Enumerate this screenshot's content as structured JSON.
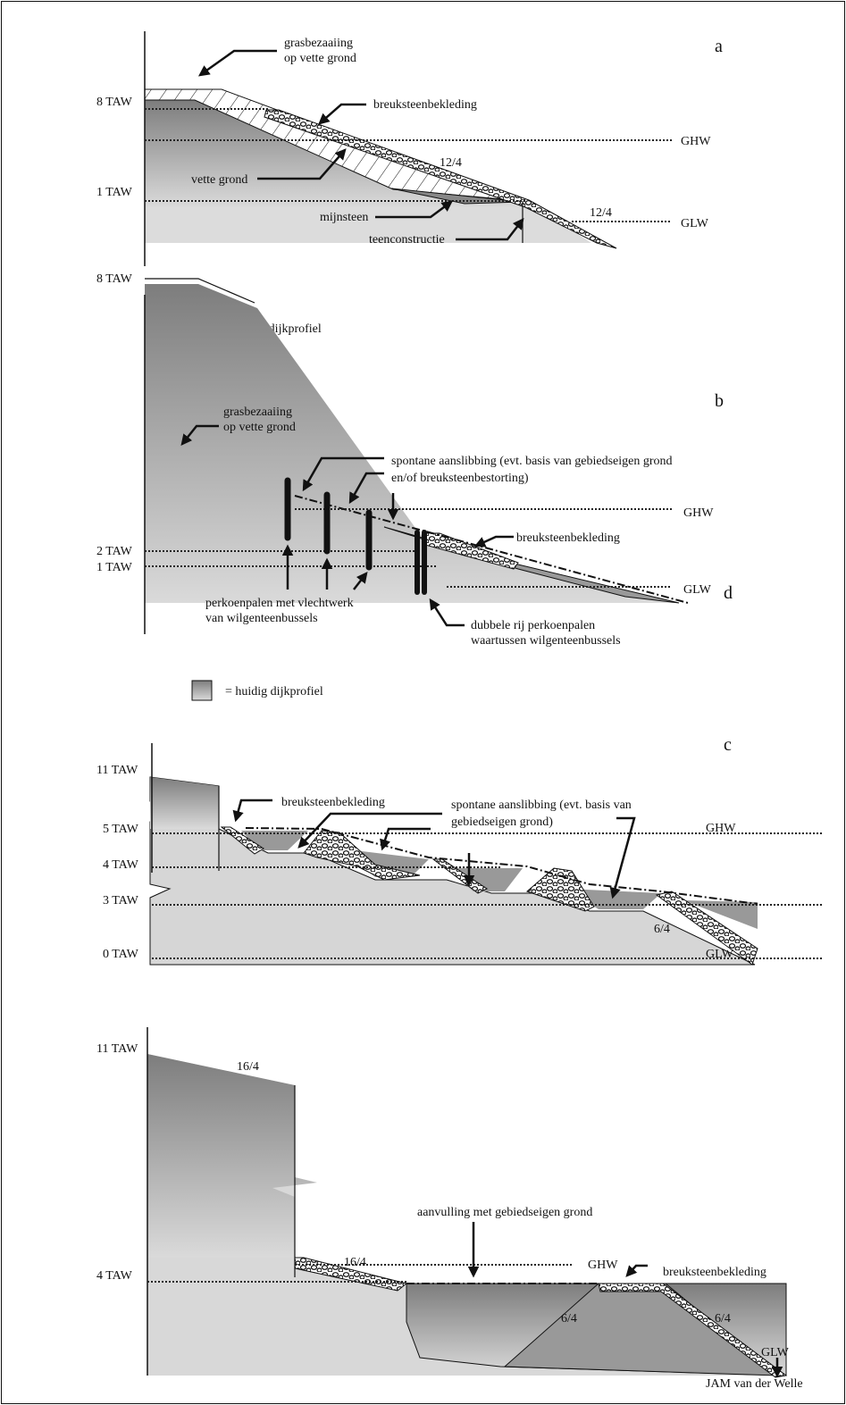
{
  "panel_a": {
    "label": "a",
    "levels": {
      "taw_8": "8 TAW",
      "taw_1": "1 TAW",
      "ghw": "GHW",
      "glw": "GLW"
    },
    "annotations": {
      "grass": [
        "grasbezaaiing",
        "op vette grond"
      ],
      "rock": "breuksteenbekleding",
      "slope_upper": "12/4",
      "fat_soil": "vette grond",
      "mine_stone": "mijnsteen",
      "toe": "teenconstructie",
      "slope_lower": "12/4"
    },
    "legend": "= huidig dijkprofiel"
  },
  "panel_b": {
    "label": "b",
    "levels": {
      "taw_8": "8 TAW",
      "taw_2": "2 TAW",
      "taw_1": "1 TAW",
      "ghw": "GHW",
      "glw": "GLW"
    },
    "annotations": {
      "grass": [
        "grasbezaaiing",
        "op vette grond"
      ],
      "silt": [
        "spontane aanslibbing (evt. basis van gebiedseigen grond",
        "en/of breuksteenbestorting)"
      ],
      "rock": "breuksteenbekleding",
      "stakes": [
        "perkoenpalen met vlechtwerk",
        "van wilgenteenbussels"
      ],
      "double_stakes": [
        "dubbele rij perkoenpalen",
        "waartussen wilgenteenbussels"
      ]
    },
    "legend": "= huidig dijkprofiel"
  },
  "panel_c": {
    "label": "c",
    "levels": {
      "taw_11": "11 TAW",
      "taw_5": "5 TAW",
      "taw_4": "4 TAW",
      "taw_3": "3 TAW",
      "taw_0": "0 TAW",
      "ghw": "GHW",
      "glw": "GLW"
    },
    "annotations": {
      "rock": "breuksteenbekleding",
      "silt": [
        "spontane aanslibbing (evt. basis van",
        "gebiedseigen grond)"
      ],
      "slope": "6/4"
    }
  },
  "panel_d": {
    "label": "d",
    "levels": {
      "taw_11": "11 TAW",
      "taw_4": "4 TAW",
      "ghw": "GHW",
      "glw": "GLW"
    },
    "annotations": {
      "slope_wall": "16/4",
      "slope_upper": "16/4",
      "fill": "aanvulling met gebiedseigen grond",
      "rock": "breuksteenbekleding",
      "slope_inner": "6/4",
      "slope_outer": "6/4"
    }
  },
  "credit": "JAM van der Welle"
}
